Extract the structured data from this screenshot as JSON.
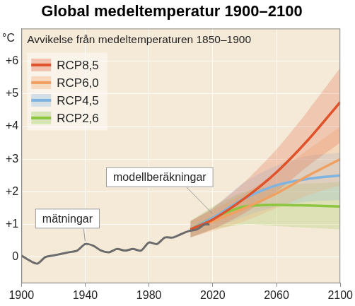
{
  "chart_data": {
    "type": "line",
    "title": "Global medeltemperatur 1900–2100",
    "subtitle": "Avvikelse från medeltemperaturen 1850–1900",
    "y_label": "°C",
    "annotations": [
      "mätningar",
      "modellberäkningar"
    ],
    "xlim": [
      1900,
      2100
    ],
    "xticks": [
      1900,
      1940,
      1980,
      2020,
      2060,
      2100
    ],
    "ylim": [
      -0.8,
      7.0
    ],
    "yticks": [
      0,
      {
        "value": 1,
        "label": "+1"
      },
      {
        "value": 2,
        "label": "+2"
      },
      {
        "value": 3,
        "label": "+3"
      },
      {
        "value": 4,
        "label": "+4"
      },
      {
        "value": 5,
        "label": "+5"
      },
      {
        "value": 6,
        "label": "+6"
      }
    ],
    "grid": true,
    "legend": "upper left",
    "series": [
      {
        "color": "#6b6b6b",
        "x": [
          1900,
          1905,
          1910,
          1915,
          1920,
          1925,
          1930,
          1935,
          1940,
          1945,
          1950,
          1955,
          1960,
          1965,
          1970,
          1975,
          1980,
          1985,
          1990,
          1995,
          2000,
          2005,
          2010,
          2015,
          2018
        ],
        "values": [
          0.05,
          -0.1,
          -0.2,
          0.0,
          0.05,
          0.1,
          0.15,
          0.2,
          0.4,
          0.35,
          0.2,
          0.15,
          0.25,
          0.2,
          0.25,
          0.2,
          0.45,
          0.4,
          0.6,
          0.6,
          0.7,
          0.8,
          0.85,
          1.0,
          1.0
        ]
      },
      {
        "name": "RCP8,5",
        "color": "#e0522a",
        "x": [
          2006,
          2020,
          2040,
          2060,
          2080,
          2100
        ],
        "values": [
          0.85,
          1.15,
          1.8,
          2.6,
          3.6,
          4.75
        ],
        "lower": [
          0.6,
          0.85,
          1.35,
          2.0,
          2.8,
          3.5
        ],
        "upper": [
          1.1,
          1.5,
          2.3,
          3.3,
          4.5,
          5.8
        ]
      },
      {
        "name": "RCP6,0",
        "color": "#f0a060",
        "x": [
          2006,
          2020,
          2040,
          2060,
          2080,
          2100
        ],
        "values": [
          0.85,
          1.1,
          1.5,
          1.95,
          2.5,
          3.0
        ],
        "lower": [
          0.6,
          0.8,
          1.1,
          1.5,
          1.9,
          2.2
        ],
        "upper": [
          1.1,
          1.45,
          1.95,
          2.6,
          3.3,
          4.0
        ]
      },
      {
        "name": "RCP4,5",
        "color": "#7fb3e0",
        "x": [
          2006,
          2020,
          2040,
          2060,
          2080,
          2100
        ],
        "values": [
          0.85,
          1.2,
          1.8,
          2.2,
          2.4,
          2.5
        ],
        "lower": [
          0.6,
          0.85,
          1.25,
          1.55,
          1.7,
          1.75
        ],
        "upper": [
          1.1,
          1.5,
          2.3,
          2.8,
          3.1,
          3.2
        ]
      },
      {
        "name": "RCP2,6",
        "color": "#8cc63f",
        "x": [
          2006,
          2020,
          2040,
          2060,
          2080,
          2100
        ],
        "values": [
          0.85,
          1.2,
          1.55,
          1.6,
          1.58,
          1.55
        ],
        "lower": [
          0.6,
          0.85,
          1.0,
          0.95,
          0.9,
          0.85
        ],
        "upper": [
          1.1,
          1.55,
          2.0,
          2.2,
          2.25,
          2.3
        ]
      }
    ]
  }
}
